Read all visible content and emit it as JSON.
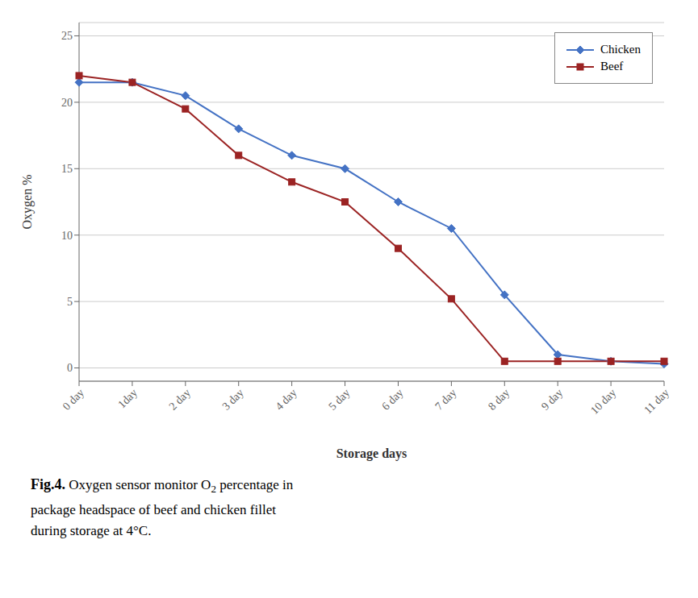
{
  "chart_data": {
    "type": "line",
    "xlabel": "Storage days",
    "ylabel": "Oxygen %",
    "categories": [
      "0 day",
      "1day",
      "2 day",
      "3 day",
      "4 day",
      "5 day",
      "6 day",
      "7 day",
      "8 day",
      "9 day",
      "10 day",
      "11 day"
    ],
    "series": [
      {
        "name": "Chicken",
        "color": "#4472C4",
        "marker": "diamond",
        "values": [
          21.5,
          21.5,
          20.5,
          18.0,
          16.0,
          15.0,
          12.5,
          10.5,
          5.5,
          1.0,
          0.5,
          0.3
        ]
      },
      {
        "name": "Beef",
        "color": "#9B2323",
        "marker": "square",
        "values": [
          22.0,
          21.5,
          19.5,
          16.0,
          14.0,
          12.5,
          9.0,
          5.2,
          0.5,
          0.5,
          0.5,
          0.5
        ]
      }
    ],
    "ylim": [
      -1,
      26
    ],
    "yticks": [
      0,
      5,
      10,
      15,
      20,
      25
    ],
    "grid": true,
    "legend": "upper right",
    "annotations": [
      "Fig.4.",
      "Oxygen sensor monitor O",
      "2",
      " percentage in",
      "package headspace of beef and chicken fillet",
      "during storage at 4°C."
    ]
  }
}
